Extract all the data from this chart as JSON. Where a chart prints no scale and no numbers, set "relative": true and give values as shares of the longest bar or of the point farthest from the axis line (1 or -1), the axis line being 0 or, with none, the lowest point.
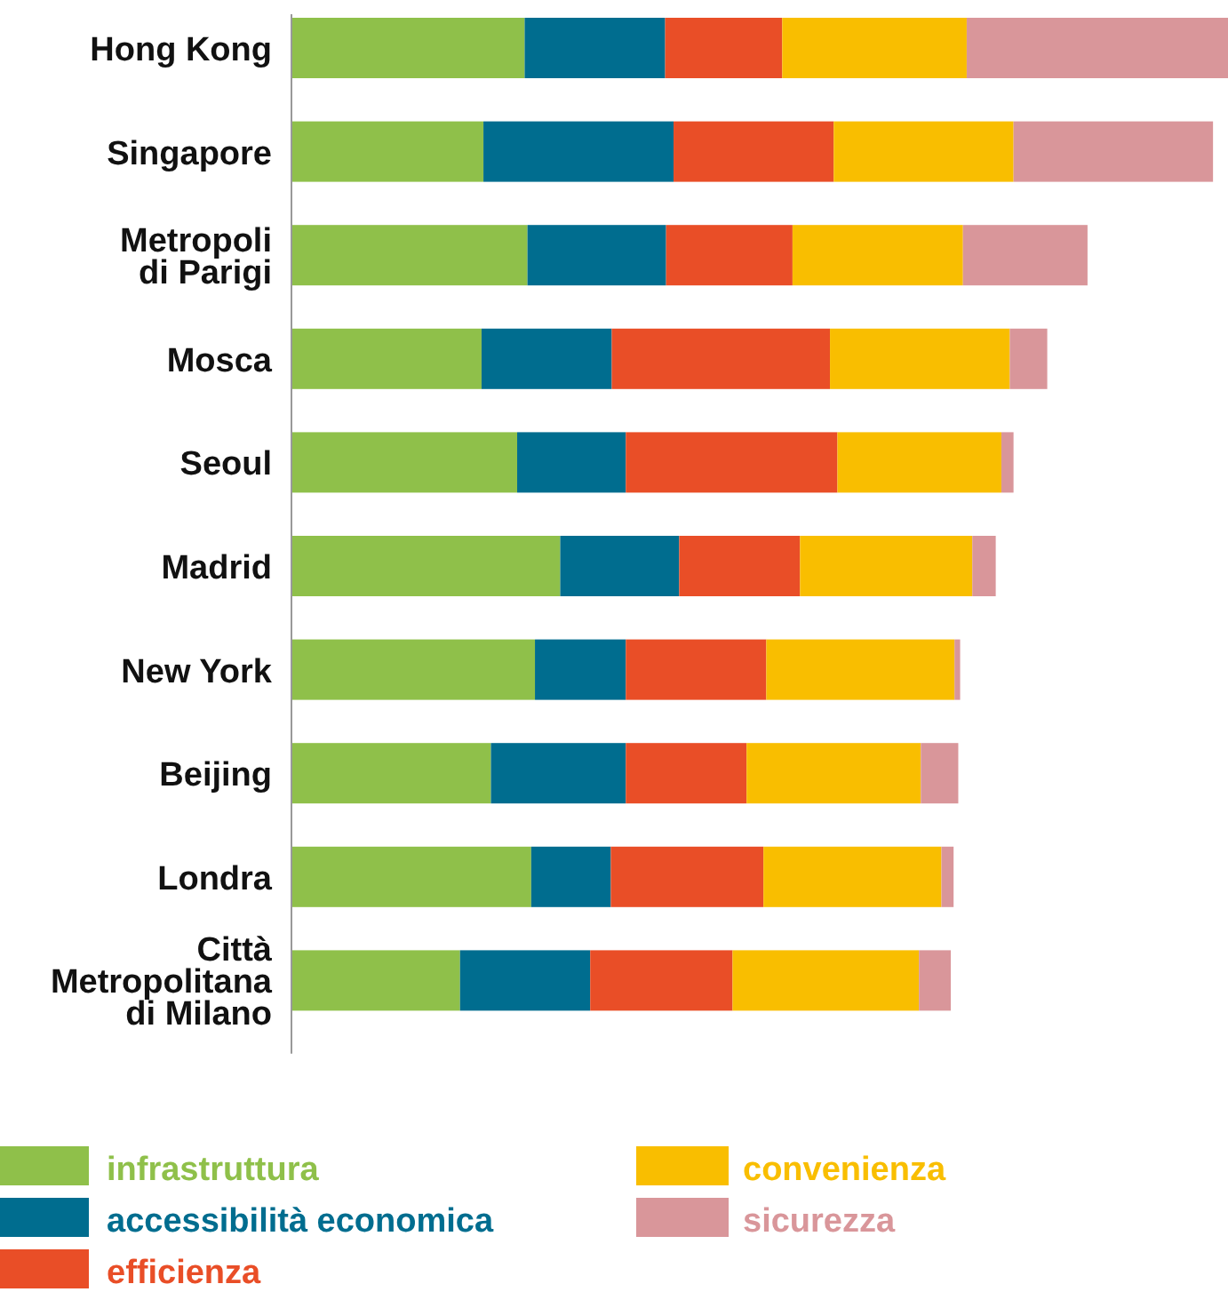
{
  "chart_data": {
    "type": "bar",
    "orientation": "horizontal",
    "stacked": true,
    "relative": true,
    "legend": "bottom",
    "categories": [
      "Hong Kong",
      "Singapore",
      "Metropoli di Parigi",
      "Mosca",
      "Seoul",
      "Madrid",
      "New York",
      "Beijing",
      "Londra",
      "Città Metropolitana di Milano"
    ],
    "series": [
      {
        "name": "infrastruttura",
        "color": "#8fc04a",
        "values": [
          0.249,
          0.205,
          0.252,
          0.203,
          0.241,
          0.287,
          0.26,
          0.213,
          0.256,
          0.18
        ]
      },
      {
        "name": "accessibilità economica",
        "color": "#006d8f",
        "values": [
          0.15,
          0.203,
          0.148,
          0.139,
          0.116,
          0.127,
          0.097,
          0.144,
          0.085,
          0.139
        ]
      },
      {
        "name": "efficienza",
        "color": "#e94e27",
        "values": [
          0.125,
          0.171,
          0.135,
          0.233,
          0.226,
          0.129,
          0.15,
          0.129,
          0.163,
          0.152
        ]
      },
      {
        "name": "convenienza",
        "color": "#f9be00",
        "values": [
          0.197,
          0.192,
          0.182,
          0.192,
          0.175,
          0.184,
          0.201,
          0.186,
          0.19,
          0.199
        ]
      },
      {
        "name": "sicurezza",
        "color": "#d9969a",
        "values": [
          0.279,
          0.213,
          0.133,
          0.04,
          0.013,
          0.025,
          0.006,
          0.04,
          0.013,
          0.034
        ]
      }
    ]
  }
}
